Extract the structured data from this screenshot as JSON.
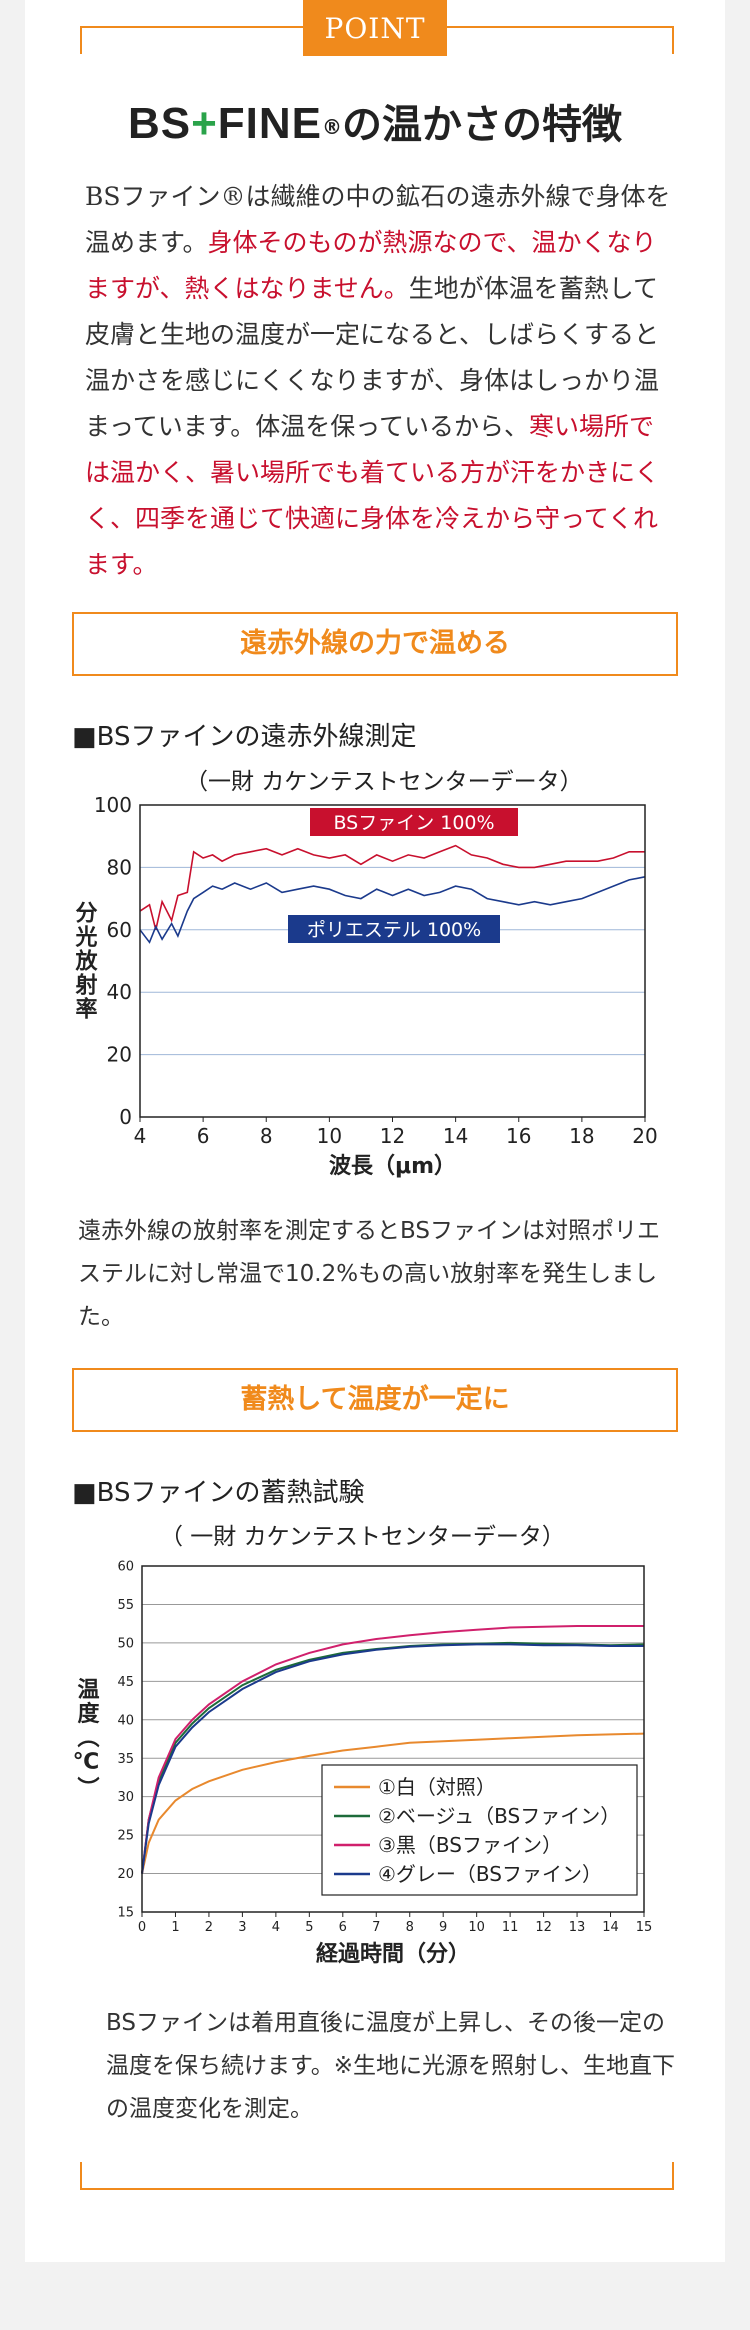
{
  "point_label": "POINT",
  "title": {
    "logo_left": "BS",
    "logo_plus": "+",
    "logo_right": "FINE",
    "reg": "®",
    "rest": "の温かさの特徴"
  },
  "intro": {
    "p1": "BSファイン®は繊維の中の鉱石の遠赤外線で身体を温めます。",
    "p2": "身体そのものが熱源なので、温かくなりますが、熱くはなりません。",
    "p3": "生地が体温を蓄熱して皮膚と生地の温度が一定になると、しばらくすると温かさを感じにくくなりますが、身体はしっかり温まっています。体温を保っているから、",
    "p4": "寒い場所では温かく、暑い場所でも着ている方が汗をかきにくく、四季を通じて快適に身体を冷えから守ってくれます。"
  },
  "section1": {
    "heading": "遠赤外線の力で温める",
    "subtitle": "■BSファインの遠赤外線測定",
    "caption": "（一財 カケンテストセンターデータ）",
    "description": "遠赤外線の放射率を測定するとBSファインは対照ポリエステルに対し常温で10.2%もの高い放射率を発生しました。"
  },
  "section2": {
    "heading": "蓄熱して温度が一定に",
    "subtitle": "■BSファインの蓄熱試験",
    "caption": "（ 一財 カケンテストセンターデータ）",
    "description": "BSファインは着用直後に温度が上昇し、その後一定の温度を保ち続けます。※生地に光源を照射し、生地直下の温度変化を測定。"
  },
  "colors": {
    "accent": "#f08a1c",
    "red": "#c8102e",
    "navy": "#1b3a8c",
    "green": "#1d6b3a",
    "magenta": "#d0206c",
    "orange": "#e8892e"
  },
  "chart_data": [
    {
      "type": "line",
      "xlabel": "波長（μm）",
      "ylabel": "分光放射率",
      "xlim": [
        4,
        20
      ],
      "ylim": [
        0,
        100
      ],
      "xticks": [
        "4",
        "6",
        "8",
        "10",
        "12",
        "14",
        "16",
        "18",
        "20"
      ],
      "yticks": [
        "0",
        "20",
        "40",
        "60",
        "80",
        "100"
      ],
      "grid": "horizontal",
      "series": [
        {
          "name": "BSファイン 100%",
          "color": "#c8102e",
          "x": [
            4,
            4.3,
            4.5,
            4.7,
            5,
            5.2,
            5.5,
            5.7,
            6,
            6.3,
            6.6,
            7,
            7.5,
            8,
            8.5,
            9,
            9.5,
            10,
            10.5,
            11,
            11.5,
            12,
            12.5,
            13,
            13.5,
            14,
            14.5,
            15,
            15.5,
            16,
            16.5,
            17,
            17.5,
            18,
            18.5,
            19,
            19.5,
            20
          ],
          "y": [
            66,
            68,
            60,
            69,
            63,
            71,
            72,
            85,
            83,
            84,
            82,
            84,
            85,
            86,
            84,
            86,
            84,
            83,
            84,
            81,
            84,
            82,
            84,
            83,
            85,
            87,
            84,
            83,
            81,
            80,
            80,
            81,
            82,
            82,
            82,
            83,
            85,
            85
          ]
        },
        {
          "name": "ポリエステル 100%",
          "color": "#1b3a8c",
          "x": [
            4,
            4.3,
            4.5,
            4.7,
            5,
            5.2,
            5.5,
            5.7,
            6,
            6.3,
            6.6,
            7,
            7.5,
            8,
            8.5,
            9,
            9.5,
            10,
            10.5,
            11,
            11.5,
            12,
            12.5,
            13,
            13.5,
            14,
            14.5,
            15,
            15.5,
            16,
            16.5,
            17,
            17.5,
            18,
            18.5,
            19,
            19.5,
            20
          ],
          "y": [
            60,
            56,
            61,
            57,
            62,
            58,
            66,
            70,
            72,
            74,
            73,
            75,
            73,
            75,
            72,
            73,
            74,
            73,
            71,
            70,
            73,
            71,
            73,
            71,
            72,
            74,
            73,
            70,
            69,
            68,
            69,
            68,
            69,
            70,
            72,
            74,
            76,
            77
          ]
        }
      ]
    },
    {
      "type": "line",
      "xlabel": "経過時間（分）",
      "ylabel": "温度（℃）",
      "xlim": [
        0,
        15
      ],
      "ylim": [
        15,
        60
      ],
      "xticks": [
        "0",
        "1",
        "2",
        "3",
        "4",
        "5",
        "6",
        "7",
        "8",
        "9",
        "10",
        "11",
        "12",
        "13",
        "14",
        "15"
      ],
      "yticks": [
        "15",
        "20",
        "25",
        "30",
        "35",
        "40",
        "45",
        "50",
        "55",
        "60"
      ],
      "grid": "horizontal",
      "legend": "bottom-right",
      "series": [
        {
          "name": "①白（対照）",
          "color": "#e8892e",
          "x": [
            0,
            0.2,
            0.5,
            1,
            1.5,
            2,
            3,
            4,
            5,
            6,
            7,
            8,
            9,
            10,
            11,
            12,
            13,
            14,
            15
          ],
          "y": [
            20,
            24,
            27,
            29.5,
            31,
            32,
            33.5,
            34.5,
            35.3,
            36,
            36.5,
            37,
            37.2,
            37.4,
            37.6,
            37.8,
            38,
            38.1,
            38.2
          ]
        },
        {
          "name": "②ベージュ（BSファイン）",
          "color": "#1d6b3a",
          "x": [
            0,
            0.2,
            0.5,
            1,
            1.5,
            2,
            3,
            4,
            5,
            6,
            7,
            8,
            9,
            10,
            11,
            12,
            13,
            14,
            15
          ],
          "y": [
            20,
            27,
            32,
            37,
            39.5,
            41.5,
            44.5,
            46.5,
            47.8,
            48.7,
            49.2,
            49.6,
            49.8,
            49.9,
            50,
            49.9,
            49.8,
            49.7,
            49.8
          ]
        },
        {
          "name": "③黒（BSファイン）",
          "color": "#d0206c",
          "x": [
            0,
            0.2,
            0.5,
            1,
            1.5,
            2,
            3,
            4,
            5,
            6,
            7,
            8,
            9,
            10,
            11,
            12,
            13,
            14,
            15
          ],
          "y": [
            20,
            27,
            32.5,
            37.5,
            40,
            42,
            45,
            47.2,
            48.7,
            49.8,
            50.5,
            51,
            51.4,
            51.7,
            52,
            52.1,
            52.2,
            52.2,
            52.2
          ]
        },
        {
          "name": "④グレー（BSファイン）",
          "color": "#1b3a8c",
          "x": [
            0,
            0.2,
            0.5,
            1,
            1.5,
            2,
            3,
            4,
            5,
            6,
            7,
            8,
            9,
            10,
            11,
            12,
            13,
            14,
            15
          ],
          "y": [
            20,
            26.5,
            31.5,
            36.5,
            39,
            41,
            44,
            46.2,
            47.6,
            48.5,
            49.1,
            49.5,
            49.7,
            49.8,
            49.8,
            49.7,
            49.7,
            49.6,
            49.6
          ]
        }
      ]
    }
  ]
}
